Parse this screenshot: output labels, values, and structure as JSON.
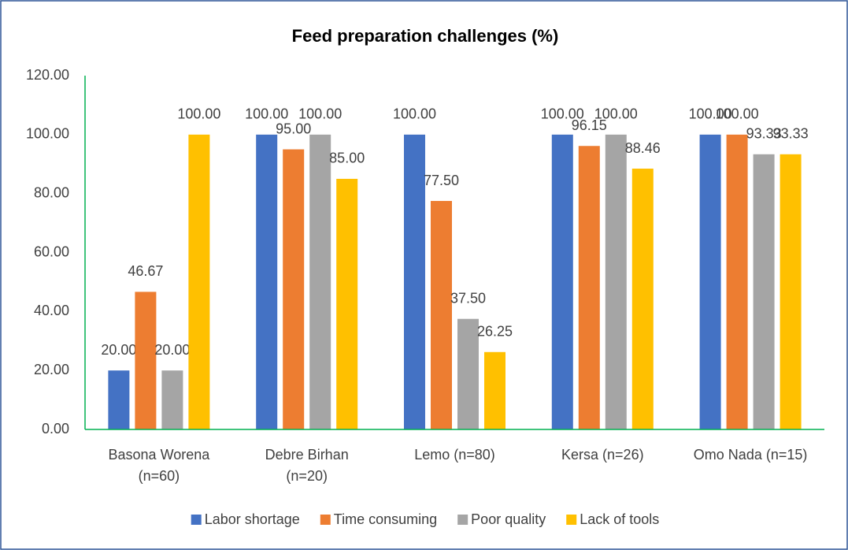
{
  "chart_data": {
    "type": "bar",
    "title": "Feed preparation challenges (%)",
    "categories": [
      "Basona Worena\n(n=60)",
      "Debre Birhan\n(n=20)",
      "Lemo (n=80)",
      "Kersa (n=26)",
      "Omo Nada (n=15)"
    ],
    "series": [
      {
        "name": "Labor shortage",
        "color": "#4472c4",
        "values": [
          20,
          100,
          100,
          100,
          100
        ],
        "value_labels": [
          "20.00",
          "100.00",
          "100.00",
          "100.00",
          "100.00"
        ]
      },
      {
        "name": "Time consuming",
        "color": "#ed7d31",
        "values": [
          46.67,
          95,
          77.5,
          96.15,
          100
        ],
        "value_labels": [
          "46.67",
          "95.00",
          "77.50",
          "96.15",
          "100.00"
        ]
      },
      {
        "name": "Poor quality",
        "color": "#a5a5a5",
        "values": [
          20,
          100,
          37.5,
          100,
          93.33
        ],
        "value_labels": [
          "20.00",
          "100.00",
          "37.50",
          "100.00",
          "93.33"
        ]
      },
      {
        "name": "Lack of tools",
        "color": "#ffc000",
        "values": [
          100,
          85,
          26.25,
          88.46,
          93.33
        ],
        "value_labels": [
          "100.00",
          "85.00",
          "26.25",
          "88.46",
          "93.33"
        ]
      }
    ],
    "ylim": [
      0,
      120
    ],
    "yticks": [
      {
        "value": 0,
        "label": "0.00"
      },
      {
        "value": 20,
        "label": "20.00"
      },
      {
        "value": 40,
        "label": "40.00"
      },
      {
        "value": 60,
        "label": "60.00"
      },
      {
        "value": 80,
        "label": "80.00"
      },
      {
        "value": 100,
        "label": "100.00"
      },
      {
        "value": 120,
        "label": "120.00"
      }
    ],
    "grid": false,
    "legend": "bottom"
  }
}
